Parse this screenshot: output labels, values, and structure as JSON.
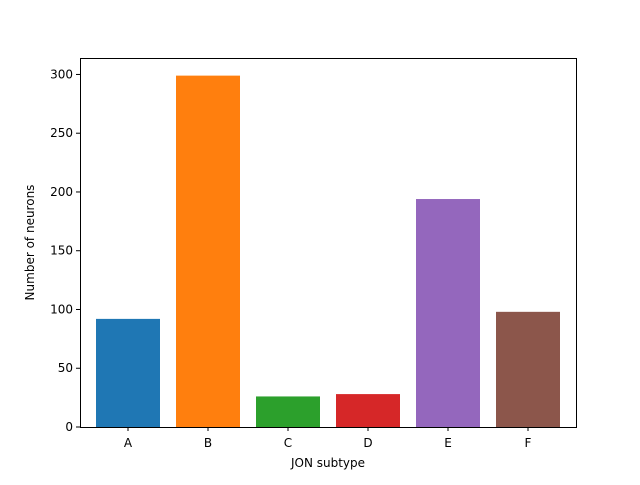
{
  "chart_data": {
    "type": "bar",
    "title": "",
    "xlabel": "JON subtype",
    "ylabel": "Number of neurons",
    "categories": [
      "A",
      "B",
      "C",
      "D",
      "E",
      "F"
    ],
    "values": [
      92,
      299,
      26,
      28,
      194,
      98
    ],
    "colors": [
      "#1f77b4",
      "#ff7f0e",
      "#2ca02c",
      "#d62728",
      "#9467bd",
      "#8c564b"
    ],
    "ylim": [
      0,
      314
    ],
    "yticks": [
      0,
      50,
      100,
      150,
      200,
      250,
      300
    ],
    "grid": false,
    "legend": "none"
  }
}
